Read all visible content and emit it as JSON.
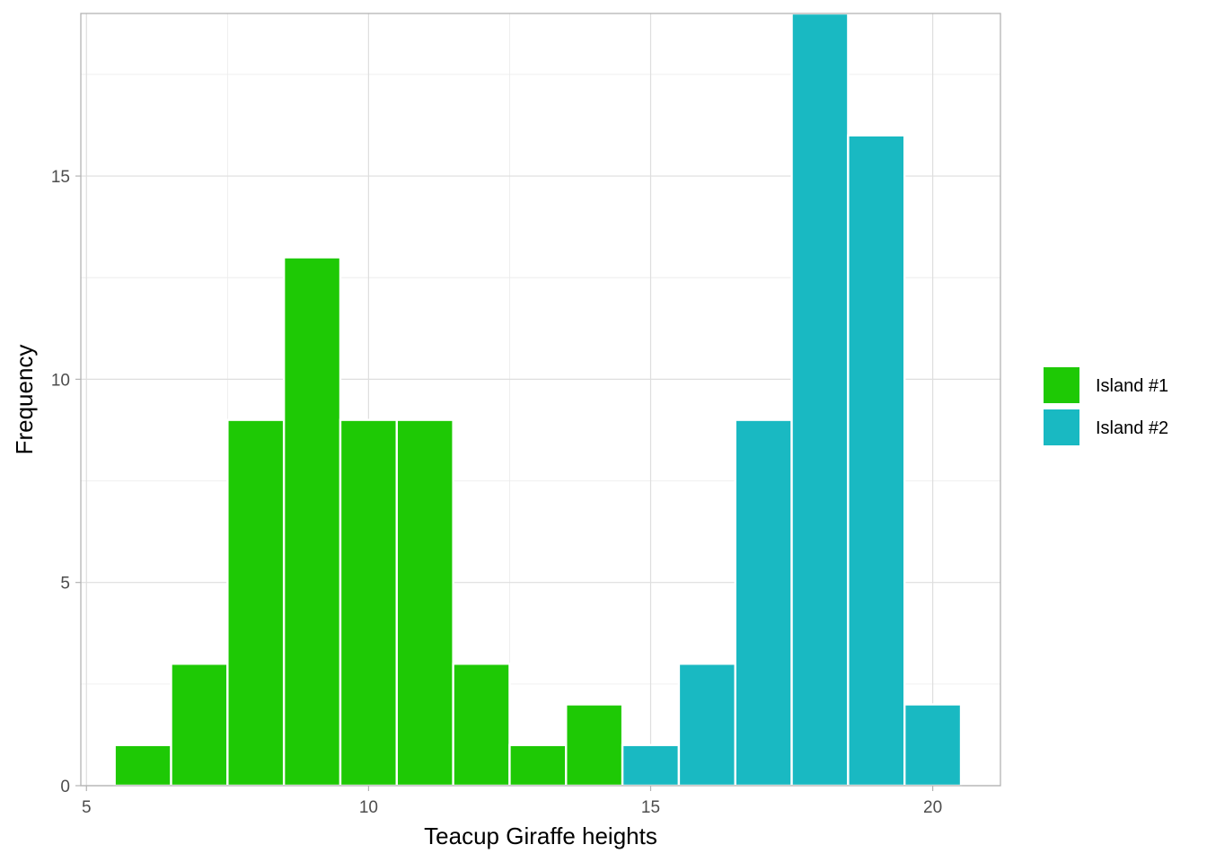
{
  "chart_data": {
    "type": "bar",
    "subtype": "histogram",
    "title": "",
    "xlabel": "Teacup Giraffe heights",
    "ylabel": "Frequency",
    "xlim": [
      4.9,
      21.2
    ],
    "ylim": [
      0,
      19
    ],
    "x_ticks": [
      5,
      10,
      15,
      20
    ],
    "x_tick_labels": [
      "5",
      "10",
      "15",
      "20"
    ],
    "y_ticks": [
      0,
      5,
      10,
      15
    ],
    "y_tick_labels": [
      "0",
      "5",
      "10",
      "15"
    ],
    "grid": true,
    "legend_position": "right",
    "series": [
      {
        "name": "Island #1",
        "color": "#1ec905",
        "bins": [
          {
            "x": 6,
            "count": 1
          },
          {
            "x": 7,
            "count": 3
          },
          {
            "x": 8,
            "count": 9
          },
          {
            "x": 9,
            "count": 13
          },
          {
            "x": 10,
            "count": 9
          },
          {
            "x": 11,
            "count": 9
          },
          {
            "x": 12,
            "count": 3
          },
          {
            "x": 13,
            "count": 1
          },
          {
            "x": 14,
            "count": 2
          }
        ]
      },
      {
        "name": "Island #2",
        "color": "#19b9c2",
        "bins": [
          {
            "x": 15,
            "count": 1
          },
          {
            "x": 16,
            "count": 3
          },
          {
            "x": 17,
            "count": 9
          },
          {
            "x": 18,
            "count": 19
          },
          {
            "x": 19,
            "count": 16
          },
          {
            "x": 20,
            "count": 2
          }
        ]
      }
    ]
  }
}
